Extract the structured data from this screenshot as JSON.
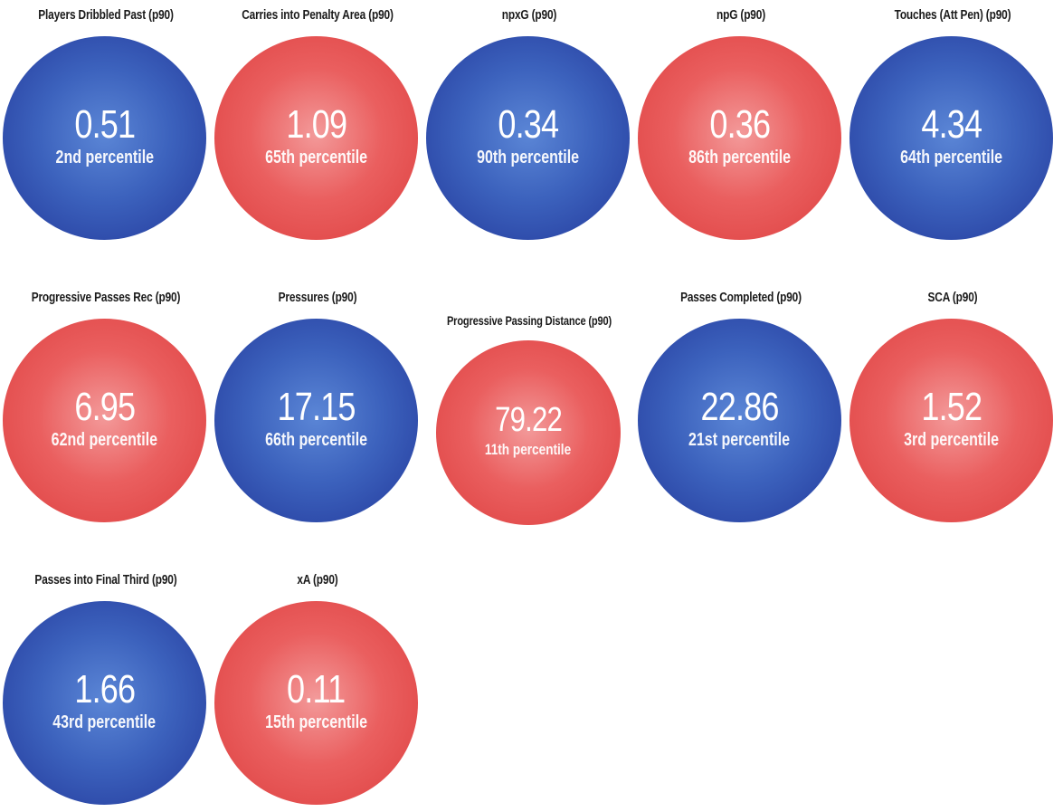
{
  "metrics": [
    {
      "label": "Players Dribbled Past (p90)",
      "value": "0.51",
      "percentile": "2nd percentile",
      "color": "blue"
    },
    {
      "label": "Carries into Penalty Area (p90)",
      "value": "1.09",
      "percentile": "65th percentile",
      "color": "red"
    },
    {
      "label": "npxG (p90)",
      "value": "0.34",
      "percentile": "90th percentile",
      "color": "blue"
    },
    {
      "label": "npG (p90)",
      "value": "0.36",
      "percentile": "86th percentile",
      "color": "red"
    },
    {
      "label": "Touches (Att Pen) (p90)",
      "value": "4.34",
      "percentile": "64th percentile",
      "color": "blue"
    },
    {
      "label": "Progressive Passes Rec (p90)",
      "value": "6.95",
      "percentile": "62nd percentile",
      "color": "red"
    },
    {
      "label": "Pressures (p90)",
      "value": "17.15",
      "percentile": "66th percentile",
      "color": "blue"
    },
    {
      "label": "Progressive Passing Distance (p90)",
      "value": "79.22",
      "percentile": "11th percentile",
      "color": "red"
    },
    {
      "label": "Passes Completed (p90)",
      "value": "22.86",
      "percentile": "21st percentile",
      "color": "blue"
    },
    {
      "label": "SCA (p90)",
      "value": "1.52",
      "percentile": "3rd percentile",
      "color": "red"
    },
    {
      "label": "Passes into Final Third (p90)",
      "value": "1.66",
      "percentile": "43rd percentile",
      "color": "blue"
    },
    {
      "label": "xA (p90)",
      "value": "0.11",
      "percentile": "15th percentile",
      "color": "red"
    }
  ],
  "colors": {
    "blue": "#3553b5",
    "red": "#e65050"
  }
}
